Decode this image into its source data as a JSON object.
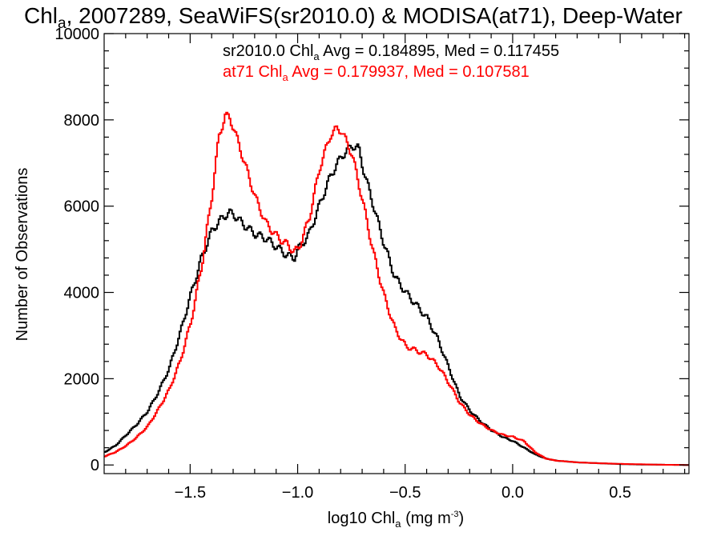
{
  "chart_data": {
    "type": "line",
    "title": {
      "prefix": "Chl",
      "prefix_sub": "a",
      "rest": ", 2007289, SeaWiFS(sr2010.0) & MODISA(at71), Deep-Water"
    },
    "xlabel": {
      "text": "log10 Chl",
      "sub": "a",
      "units": " (mg m",
      "units_sup": "-3",
      "close": ")"
    },
    "ylabel": "Number of Observations",
    "xlim": [
      -1.9,
      0.82
    ],
    "ylim": [
      -200,
      10000
    ],
    "x_ticks": [
      {
        "value": -1.5,
        "label": "−1.5"
      },
      {
        "value": -1.0,
        "label": "−1.0"
      },
      {
        "value": -0.5,
        "label": "−0.5"
      },
      {
        "value": 0.0,
        "label": "0.0"
      },
      {
        "value": 0.5,
        "label": "0.5"
      }
    ],
    "y_ticks": [
      {
        "value": 0,
        "label": "0"
      },
      {
        "value": 2000,
        "label": "2000"
      },
      {
        "value": 4000,
        "label": "4000"
      },
      {
        "value": 6000,
        "label": "6000"
      },
      {
        "value": 8000,
        "label": "8000"
      },
      {
        "value": 10000,
        "label": "10000"
      }
    ],
    "grid": false,
    "legend": "top",
    "series": [
      {
        "name": "sr2010.0",
        "color": "#000000",
        "stats": {
          "pre": "sr2010.0 Chl",
          "sub": "a",
          "post": " Avg = 0.184895, Med = 0.117455"
        },
        "points": [
          [
            -1.9,
            300
          ],
          [
            -1.85,
            450
          ],
          [
            -1.8,
            700
          ],
          [
            -1.75,
            950
          ],
          [
            -1.7,
            1250
          ],
          [
            -1.65,
            1700
          ],
          [
            -1.6,
            2250
          ],
          [
            -1.55,
            3050
          ],
          [
            -1.5,
            3950
          ],
          [
            -1.45,
            4800
          ],
          [
            -1.4,
            5450
          ],
          [
            -1.35,
            5750
          ],
          [
            -1.32,
            5850
          ],
          [
            -1.3,
            5800
          ],
          [
            -1.25,
            5550
          ],
          [
            -1.2,
            5350
          ],
          [
            -1.15,
            5250
          ],
          [
            -1.1,
            5050
          ],
          [
            -1.05,
            4850
          ],
          [
            -1.02,
            4800
          ],
          [
            -1.0,
            5000
          ],
          [
            -0.95,
            5350
          ],
          [
            -0.9,
            6050
          ],
          [
            -0.85,
            6700
          ],
          [
            -0.8,
            7150
          ],
          [
            -0.75,
            7400
          ],
          [
            -0.72,
            7350
          ],
          [
            -0.7,
            6900
          ],
          [
            -0.65,
            6000
          ],
          [
            -0.6,
            5100
          ],
          [
            -0.55,
            4350
          ],
          [
            -0.5,
            4000
          ],
          [
            -0.45,
            3700
          ],
          [
            -0.4,
            3400
          ],
          [
            -0.35,
            2900
          ],
          [
            -0.3,
            2250
          ],
          [
            -0.25,
            1600
          ],
          [
            -0.2,
            1250
          ],
          [
            -0.15,
            1000
          ],
          [
            -0.1,
            800
          ],
          [
            -0.05,
            650
          ],
          [
            0.0,
            550
          ],
          [
            0.05,
            400
          ],
          [
            0.1,
            250
          ],
          [
            0.15,
            150
          ],
          [
            0.2,
            100
          ],
          [
            0.3,
            60
          ],
          [
            0.4,
            40
          ],
          [
            0.5,
            20
          ],
          [
            0.6,
            10
          ],
          [
            0.7,
            5
          ],
          [
            0.82,
            0
          ]
        ]
      },
      {
        "name": "at71",
        "color": "#ff0000",
        "stats": {
          "pre": "at71 Chl",
          "sub": "a",
          "post": " Avg = 0.179937, Med = 0.107581"
        },
        "points": [
          [
            -1.9,
            200
          ],
          [
            -1.85,
            300
          ],
          [
            -1.8,
            450
          ],
          [
            -1.75,
            650
          ],
          [
            -1.7,
            900
          ],
          [
            -1.65,
            1300
          ],
          [
            -1.6,
            1750
          ],
          [
            -1.55,
            2400
          ],
          [
            -1.5,
            3300
          ],
          [
            -1.45,
            4600
          ],
          [
            -1.4,
            6300
          ],
          [
            -1.37,
            7600
          ],
          [
            -1.34,
            8100
          ],
          [
            -1.32,
            8050
          ],
          [
            -1.3,
            7800
          ],
          [
            -1.25,
            7000
          ],
          [
            -1.2,
            6200
          ],
          [
            -1.15,
            5600
          ],
          [
            -1.1,
            5300
          ],
          [
            -1.05,
            5100
          ],
          [
            -1.02,
            4950
          ],
          [
            -1.0,
            5000
          ],
          [
            -0.95,
            5700
          ],
          [
            -0.9,
            6900
          ],
          [
            -0.85,
            7650
          ],
          [
            -0.82,
            7800
          ],
          [
            -0.8,
            7750
          ],
          [
            -0.75,
            7200
          ],
          [
            -0.7,
            6100
          ],
          [
            -0.65,
            4900
          ],
          [
            -0.6,
            3900
          ],
          [
            -0.55,
            3150
          ],
          [
            -0.5,
            2750
          ],
          [
            -0.45,
            2650
          ],
          [
            -0.4,
            2550
          ],
          [
            -0.35,
            2300
          ],
          [
            -0.3,
            1900
          ],
          [
            -0.25,
            1450
          ],
          [
            -0.2,
            1150
          ],
          [
            -0.15,
            950
          ],
          [
            -0.1,
            800
          ],
          [
            -0.05,
            700
          ],
          [
            0.0,
            650
          ],
          [
            0.05,
            550
          ],
          [
            0.1,
            300
          ],
          [
            0.15,
            150
          ],
          [
            0.2,
            100
          ],
          [
            0.3,
            60
          ],
          [
            0.4,
            40
          ],
          [
            0.5,
            25
          ],
          [
            0.6,
            15
          ],
          [
            0.7,
            5
          ],
          [
            0.82,
            0
          ]
        ]
      }
    ]
  }
}
